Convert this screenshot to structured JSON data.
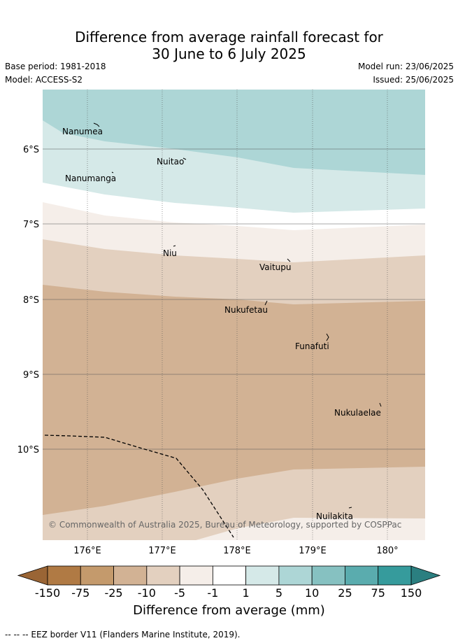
{
  "title_line1": "Difference from average rainfall forecast for",
  "title_line2": "30 June to 6 July 2025",
  "base_period": "Base period: 1981-2018",
  "model": "Model: ACCESS-S2",
  "model_run": "Model run: 23/06/2025",
  "issued": "Issued: 25/06/2025",
  "copyright": "© Commonwealth of Australia 2025, Bureau of Meteorology, supported by COSPPac",
  "lat_ticks": [
    "6°S",
    "7°S",
    "8°S",
    "9°S",
    "10°S"
  ],
  "lon_ticks": [
    "176°E",
    "177°E",
    "178°E",
    "179°E",
    "180°"
  ],
  "places": [
    "Nanumea",
    "Nuitao",
    "Nanumanga",
    "Niu",
    "Vaitupu",
    "Nukufetau",
    "Funafuti",
    "Nukulaelae",
    "Nuilakita"
  ],
  "colorbar": {
    "title": "Difference from average (mm)",
    "ticks": [
      "-150",
      "-75",
      "-25",
      "-10",
      "-5",
      "-1",
      "1",
      "5",
      "10",
      "25",
      "75",
      "150"
    ],
    "colors": [
      "#b07a44",
      "#c49a6c",
      "#d2b294",
      "#e3d0bf",
      "#f5eee9",
      "#ffffff",
      "#d5e9e8",
      "#add6d6",
      "#86c1c1",
      "#5aacae",
      "#369b9c"
    ],
    "under_color": "#9a6535",
    "over_color": "#2b7f80"
  },
  "footnote": "-- -- -- EEZ border V11 (Flanders Marine Institute, 2019)."
}
